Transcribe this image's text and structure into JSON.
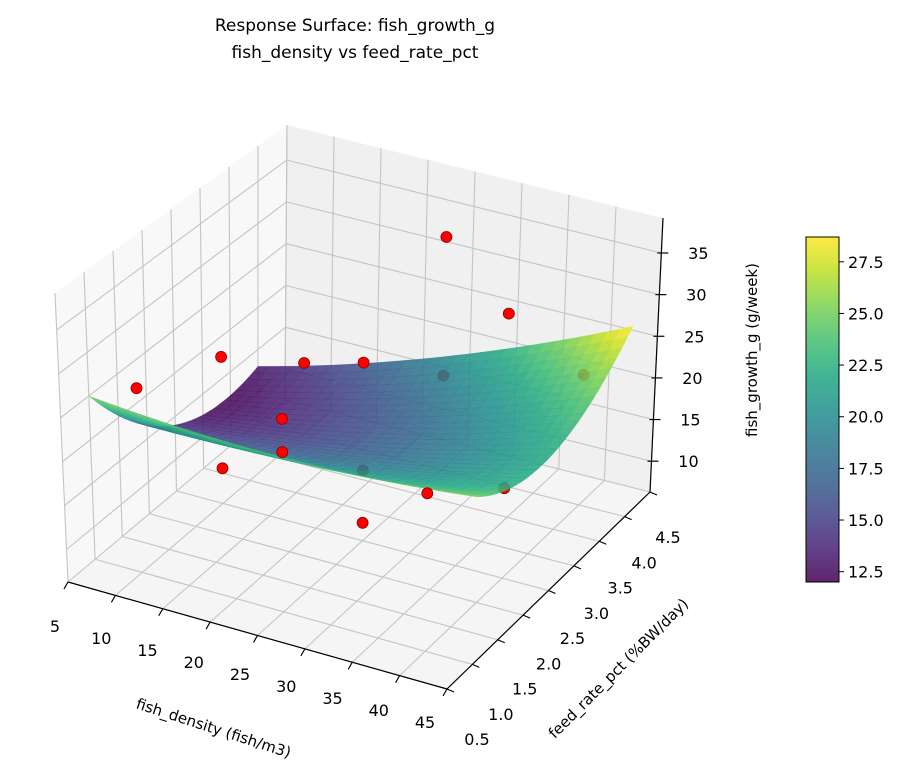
{
  "chart_data": {
    "type": "surface3d",
    "title": [
      "Response Surface: fish_growth_g",
      "fish_density vs feed_rate_pct"
    ],
    "xlabel": "fish_density (fish/m3)",
    "ylabel": "feed_rate_pct (%BW/day)",
    "zlabel": "fish_growth_g (g/week)",
    "xlim": [
      5,
      45
    ],
    "ylim": [
      0.5,
      4.5
    ],
    "zlim": [
      6.3,
      39.2
    ],
    "xticks": [
      "5",
      "10",
      "15",
      "20",
      "25",
      "30",
      "35",
      "40",
      "45"
    ],
    "yticks": [
      "0.5",
      "1.0",
      "1.5",
      "2.0",
      "2.5",
      "3.0",
      "3.5",
      "4.0",
      "4.5"
    ],
    "zticks": [
      "10",
      "15",
      "20",
      "25",
      "30",
      "35"
    ],
    "grid": true,
    "colormap": "viridis",
    "colorbar": {
      "clim": [
        12.0,
        28.7
      ],
      "ticks": [
        "12.5",
        "15.0",
        "17.5",
        "20.0",
        "22.5",
        "25.0",
        "27.5"
      ]
    },
    "surface": {
      "x": [
        5,
        15,
        25,
        35,
        45
      ],
      "y": [
        1.0,
        1.75,
        2.5,
        3.25,
        4.0
      ],
      "z": [
        [
          25.0,
          24.19,
          24.0,
          24.44,
          25.5
        ],
        [
          18.25,
          18.41,
          19.19,
          20.59,
          22.63
        ],
        [
          14.0,
          15.13,
          16.88,
          19.25,
          22.25
        ],
        [
          12.25,
          14.34,
          17.06,
          20.41,
          24.38
        ],
        [
          13.0,
          16.06,
          19.75,
          24.06,
          29.0
        ]
      ]
    },
    "points": {
      "color": "#ff0000",
      "x": [
        10,
        10,
        10,
        10,
        25,
        25,
        25,
        25,
        25,
        25,
        25,
        40,
        40,
        40,
        40
      ],
      "y": [
        1.0,
        2.5,
        2.5,
        4.0,
        1.0,
        1.0,
        2.5,
        2.5,
        2.5,
        4.0,
        4.0,
        1.0,
        2.5,
        2.5,
        4.0
      ],
      "z": [
        27.4,
        23.4,
        10.4,
        14.8,
        28.4,
        24.6,
        27.1,
        14.5,
        8.4,
        34.0,
        17.5,
        24.4,
        37.2,
        16.8,
        21.8
      ]
    }
  }
}
